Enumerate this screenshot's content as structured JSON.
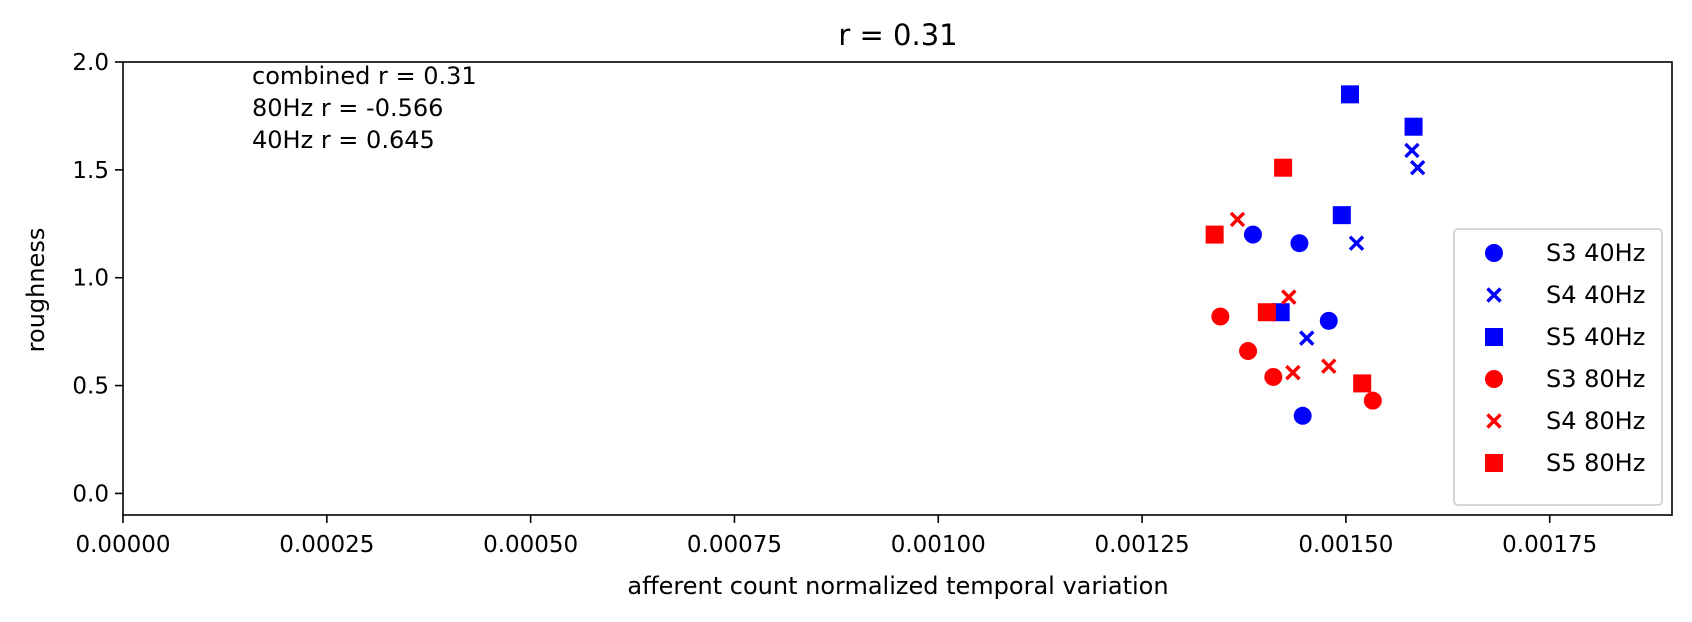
{
  "chart_data": {
    "type": "scatter",
    "title": "r = 0.31",
    "xlabel": "afferent count normalized temporal variation",
    "ylabel": "roughness",
    "xlim": [
      0,
      0.0019
    ],
    "ylim": [
      -0.1,
      2.0
    ],
    "x_ticks": [
      0,
      0.00025,
      0.0005,
      0.00075,
      0.001,
      0.00125,
      0.0015,
      0.00175
    ],
    "x_tick_labels": [
      "0.00000",
      "0.00025",
      "0.00050",
      "0.00075",
      "0.00100",
      "0.00125",
      "0.00150",
      "0.00175"
    ],
    "y_ticks": [
      0,
      0.5,
      1.0,
      1.5,
      2.0
    ],
    "y_tick_labels": [
      "0.0",
      "0.5",
      "1.0",
      "1.5",
      "2.0"
    ],
    "grid": false,
    "legend_position": "lower-right",
    "annotations": [
      "combined r = 0.31",
      "80Hz r = -0.566",
      "40Hz r = 0.645"
    ],
    "series": [
      {
        "name": "S3 40Hz",
        "marker": "circle",
        "color": "#0000ff",
        "x": [
          0.001386,
          0.001443,
          0.001479,
          0.001447
        ],
        "y": [
          1.2,
          1.16,
          0.8,
          0.36
        ]
      },
      {
        "name": "S4 40Hz",
        "marker": "x",
        "color": "#0000ff",
        "x": [
          0.001581,
          0.001588,
          0.001513,
          0.001452
        ],
        "y": [
          1.59,
          1.51,
          1.16,
          0.72
        ]
      },
      {
        "name": "S5 40Hz",
        "marker": "square",
        "color": "#0000ff",
        "x": [
          0.001505,
          0.001583,
          0.001495,
          0.00142
        ],
        "y": [
          1.85,
          1.7,
          1.29,
          0.84
        ]
      },
      {
        "name": "S3 80Hz",
        "marker": "circle",
        "color": "#ff0000",
        "x": [
          0.001346,
          0.00138,
          0.001411,
          0.001533
        ],
        "y": [
          0.82,
          0.66,
          0.54,
          0.43
        ]
      },
      {
        "name": "S4 80Hz",
        "marker": "x",
        "color": "#ff0000",
        "x": [
          0.001367,
          0.00143,
          0.001435,
          0.001479
        ],
        "y": [
          1.27,
          0.91,
          0.56,
          0.59
        ]
      },
      {
        "name": "S5 80Hz",
        "marker": "square",
        "color": "#ff0000",
        "x": [
          0.001423,
          0.001339,
          0.001403,
          0.00152
        ],
        "y": [
          1.51,
          1.2,
          0.84,
          0.51
        ]
      }
    ]
  }
}
